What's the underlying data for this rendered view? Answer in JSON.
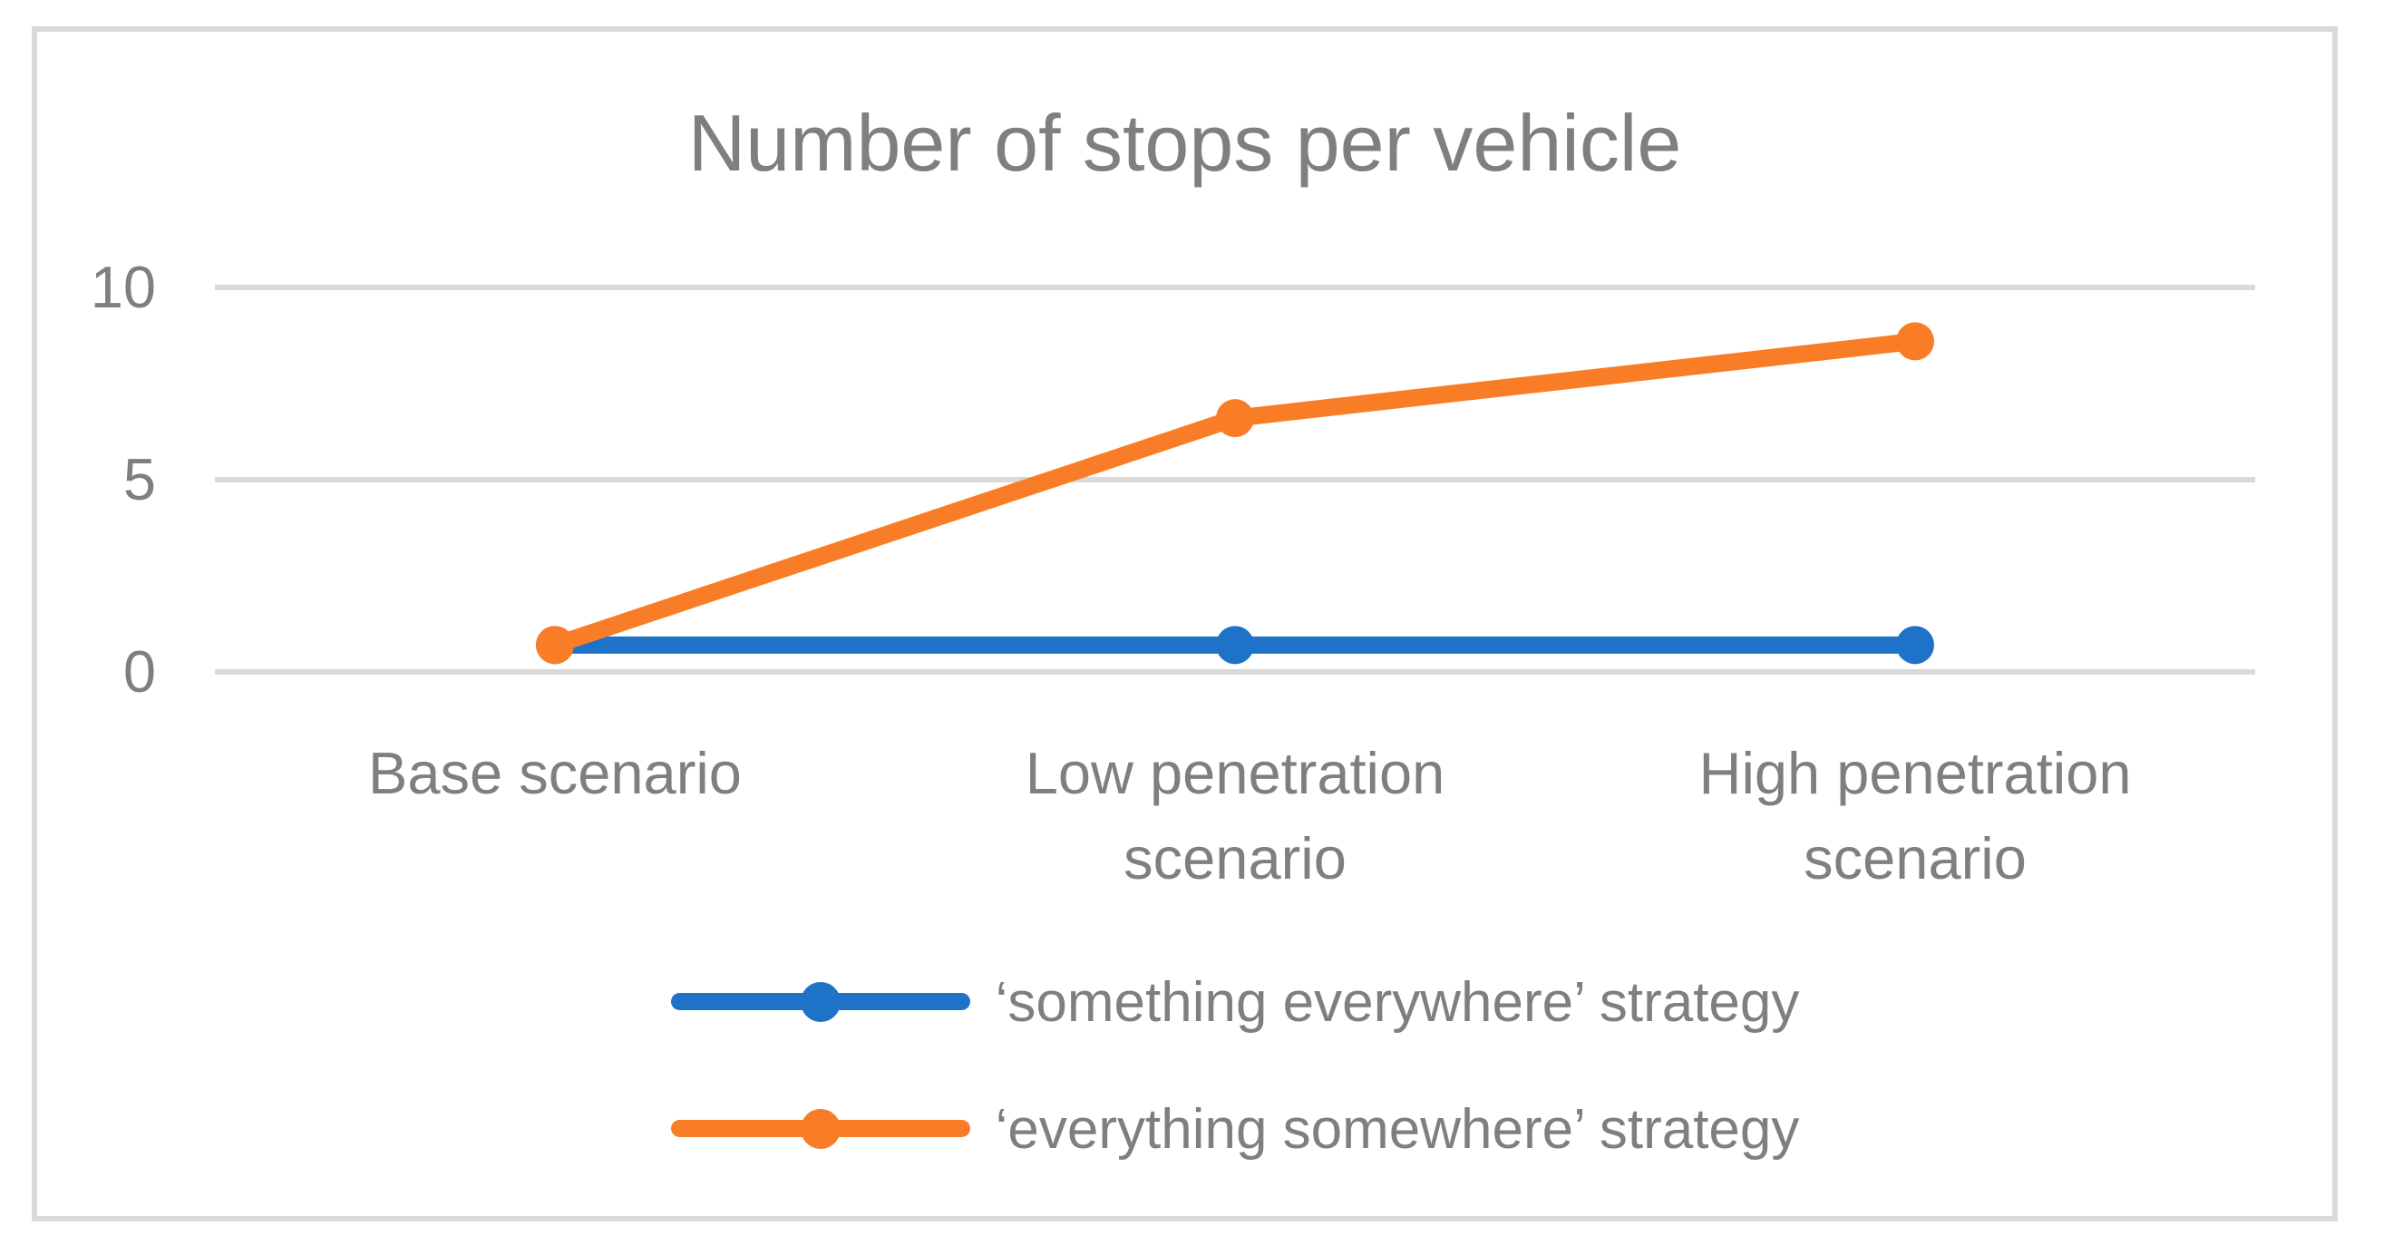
{
  "chart_data": {
    "type": "line",
    "title": "Number of stops per vehicle",
    "categories": [
      "Base scenario",
      "Low penetration scenario",
      "High penetration scenario"
    ],
    "series": [
      {
        "name": "‘something everywhere’ strategy",
        "color": "#1E73C8",
        "values": [
          0.7,
          0.7,
          0.7
        ]
      },
      {
        "name": "‘everything somewhere’ strategy",
        "color": "#F97D26",
        "values": [
          0.7,
          6.6,
          8.6
        ]
      }
    ],
    "ylim": [
      0,
      10
    ],
    "yticks": [
      0,
      5,
      10
    ],
    "grid": "horizontal",
    "legend_position": "bottom",
    "marker": "circle"
  },
  "colors": {
    "grid": "#D9D9D9",
    "frame": "#D9D9D9",
    "text": "#7F7F7F",
    "background": "#FFFFFF"
  }
}
